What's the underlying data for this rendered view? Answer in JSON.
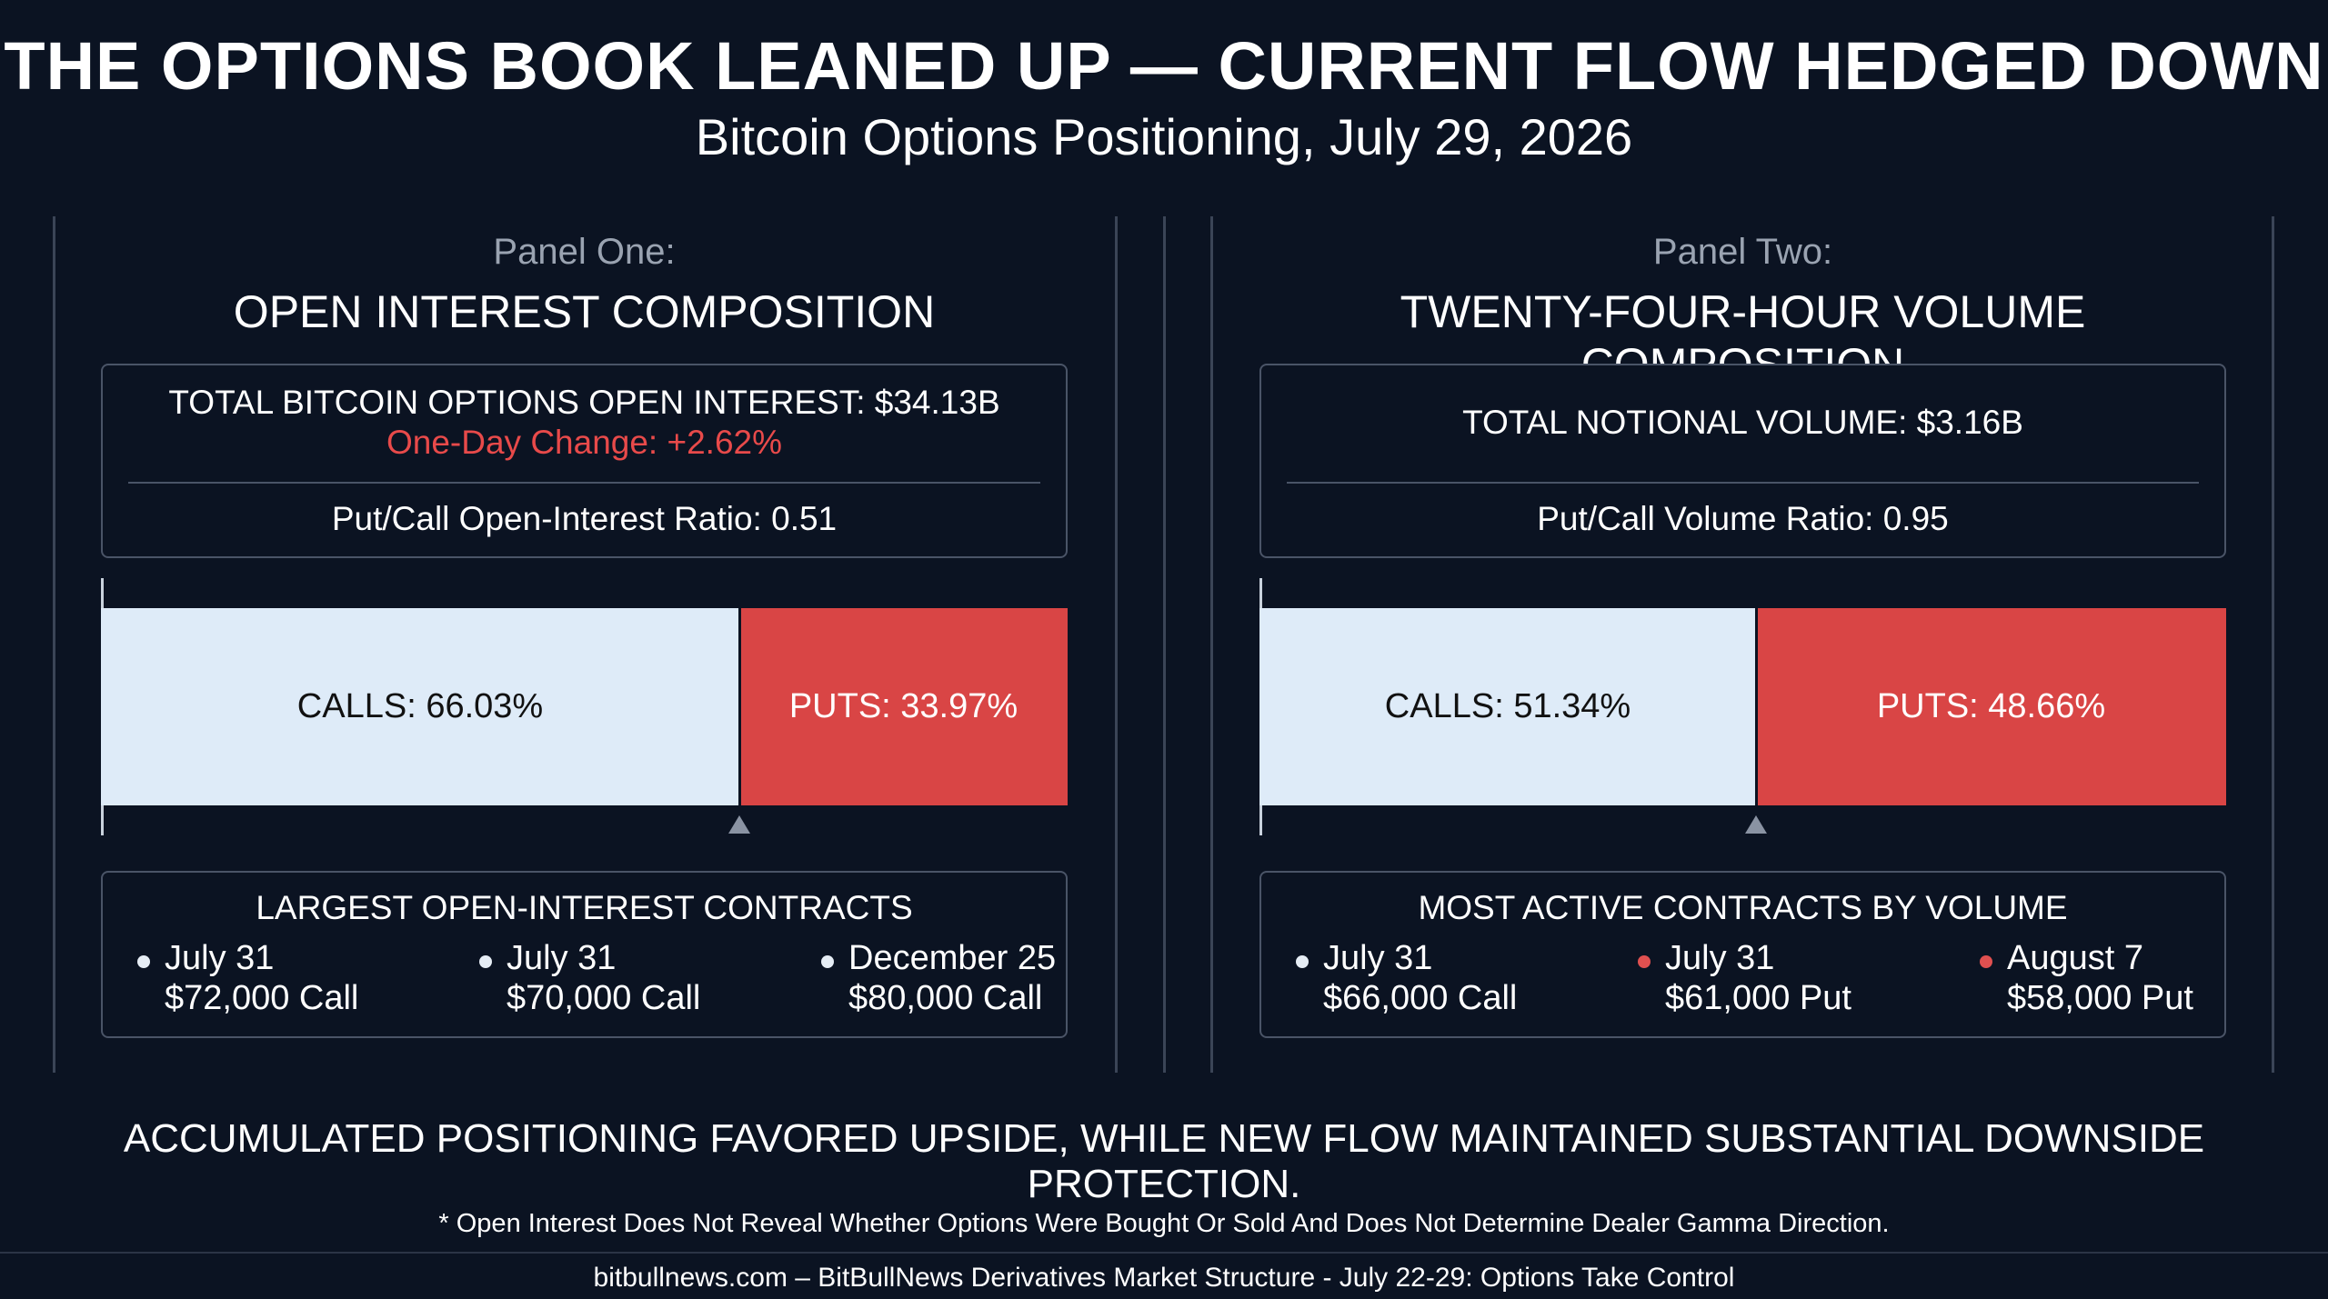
{
  "header": {
    "title": "THE OPTIONS BOOK LEANED UP — CURRENT FLOW HEDGED DOWN",
    "subtitle": "Bitcoin Options Positioning, July 29, 2026"
  },
  "colors": {
    "background": "#0b1322",
    "calls": "#deebf8",
    "puts": "#d94545",
    "change_text": "#e84a4a",
    "call_dot": "#e6edf5",
    "put_dot": "#e05050"
  },
  "panel_one": {
    "kicker": "Panel One:",
    "heading": "OPEN INTEREST COMPOSITION",
    "total_line": "TOTAL BITCOIN OPTIONS OPEN INTEREST: $34.13B",
    "change_line": "One-Day Change: +2.62%",
    "ratio_line": "Put/Call Open-Interest Ratio: 0.51",
    "calls_label": "CALLS: 66.03%",
    "puts_label": "PUTS: 33.97%",
    "contracts_title": "LARGEST OPEN-INTEREST CONTRACTS",
    "contracts": [
      {
        "date": "July 31",
        "strike": "$72,000 Call",
        "kind": "call"
      },
      {
        "date": "July 31",
        "strike": "$70,000 Call",
        "kind": "call"
      },
      {
        "date": "December 25",
        "strike": "$80,000 Call",
        "kind": "call"
      }
    ]
  },
  "panel_two": {
    "kicker": "Panel Two:",
    "heading": "TWENTY-FOUR-HOUR VOLUME COMPOSITION",
    "total_line": "TOTAL NOTIONAL VOLUME: $3.16B",
    "ratio_line": "Put/Call Volume Ratio: 0.95",
    "calls_label": "CALLS: 51.34%",
    "puts_label": "PUTS: 48.66%",
    "contracts_title": "MOST ACTIVE CONTRACTS BY VOLUME",
    "contracts": [
      {
        "date": "July 31",
        "strike": "$66,000 Call",
        "kind": "call"
      },
      {
        "date": "July 31",
        "strike": "$61,000 Put",
        "kind": "put"
      },
      {
        "date": "August 7",
        "strike": "$58,000 Put",
        "kind": "put"
      }
    ]
  },
  "chart_data": [
    {
      "type": "bar",
      "orientation": "horizontal-stacked-100",
      "categories": [
        "Calls",
        "Puts"
      ],
      "values": [
        66.03,
        33.97
      ],
      "unit": "%",
      "title": "OPEN INTEREST COMPOSITION"
    },
    {
      "type": "bar",
      "orientation": "horizontal-stacked-100",
      "categories": [
        "Calls",
        "Puts"
      ],
      "values": [
        51.34,
        48.66
      ],
      "unit": "%",
      "title": "TWENTY-FOUR-HOUR VOLUME COMPOSITION"
    }
  ],
  "conclusion": "ACCUMULATED POSITIONING FAVORED UPSIDE, WHILE NEW FLOW MAINTAINED SUBSTANTIAL DOWNSIDE PROTECTION.",
  "footnote": "* Open Interest Does Not Reveal Whether Options Were Bought Or Sold And Does Not Determine Dealer Gamma Direction.",
  "footer": "bitbullnews.com  – BitBullNews Derivatives Market Structure - July 22-29: Options Take Control"
}
